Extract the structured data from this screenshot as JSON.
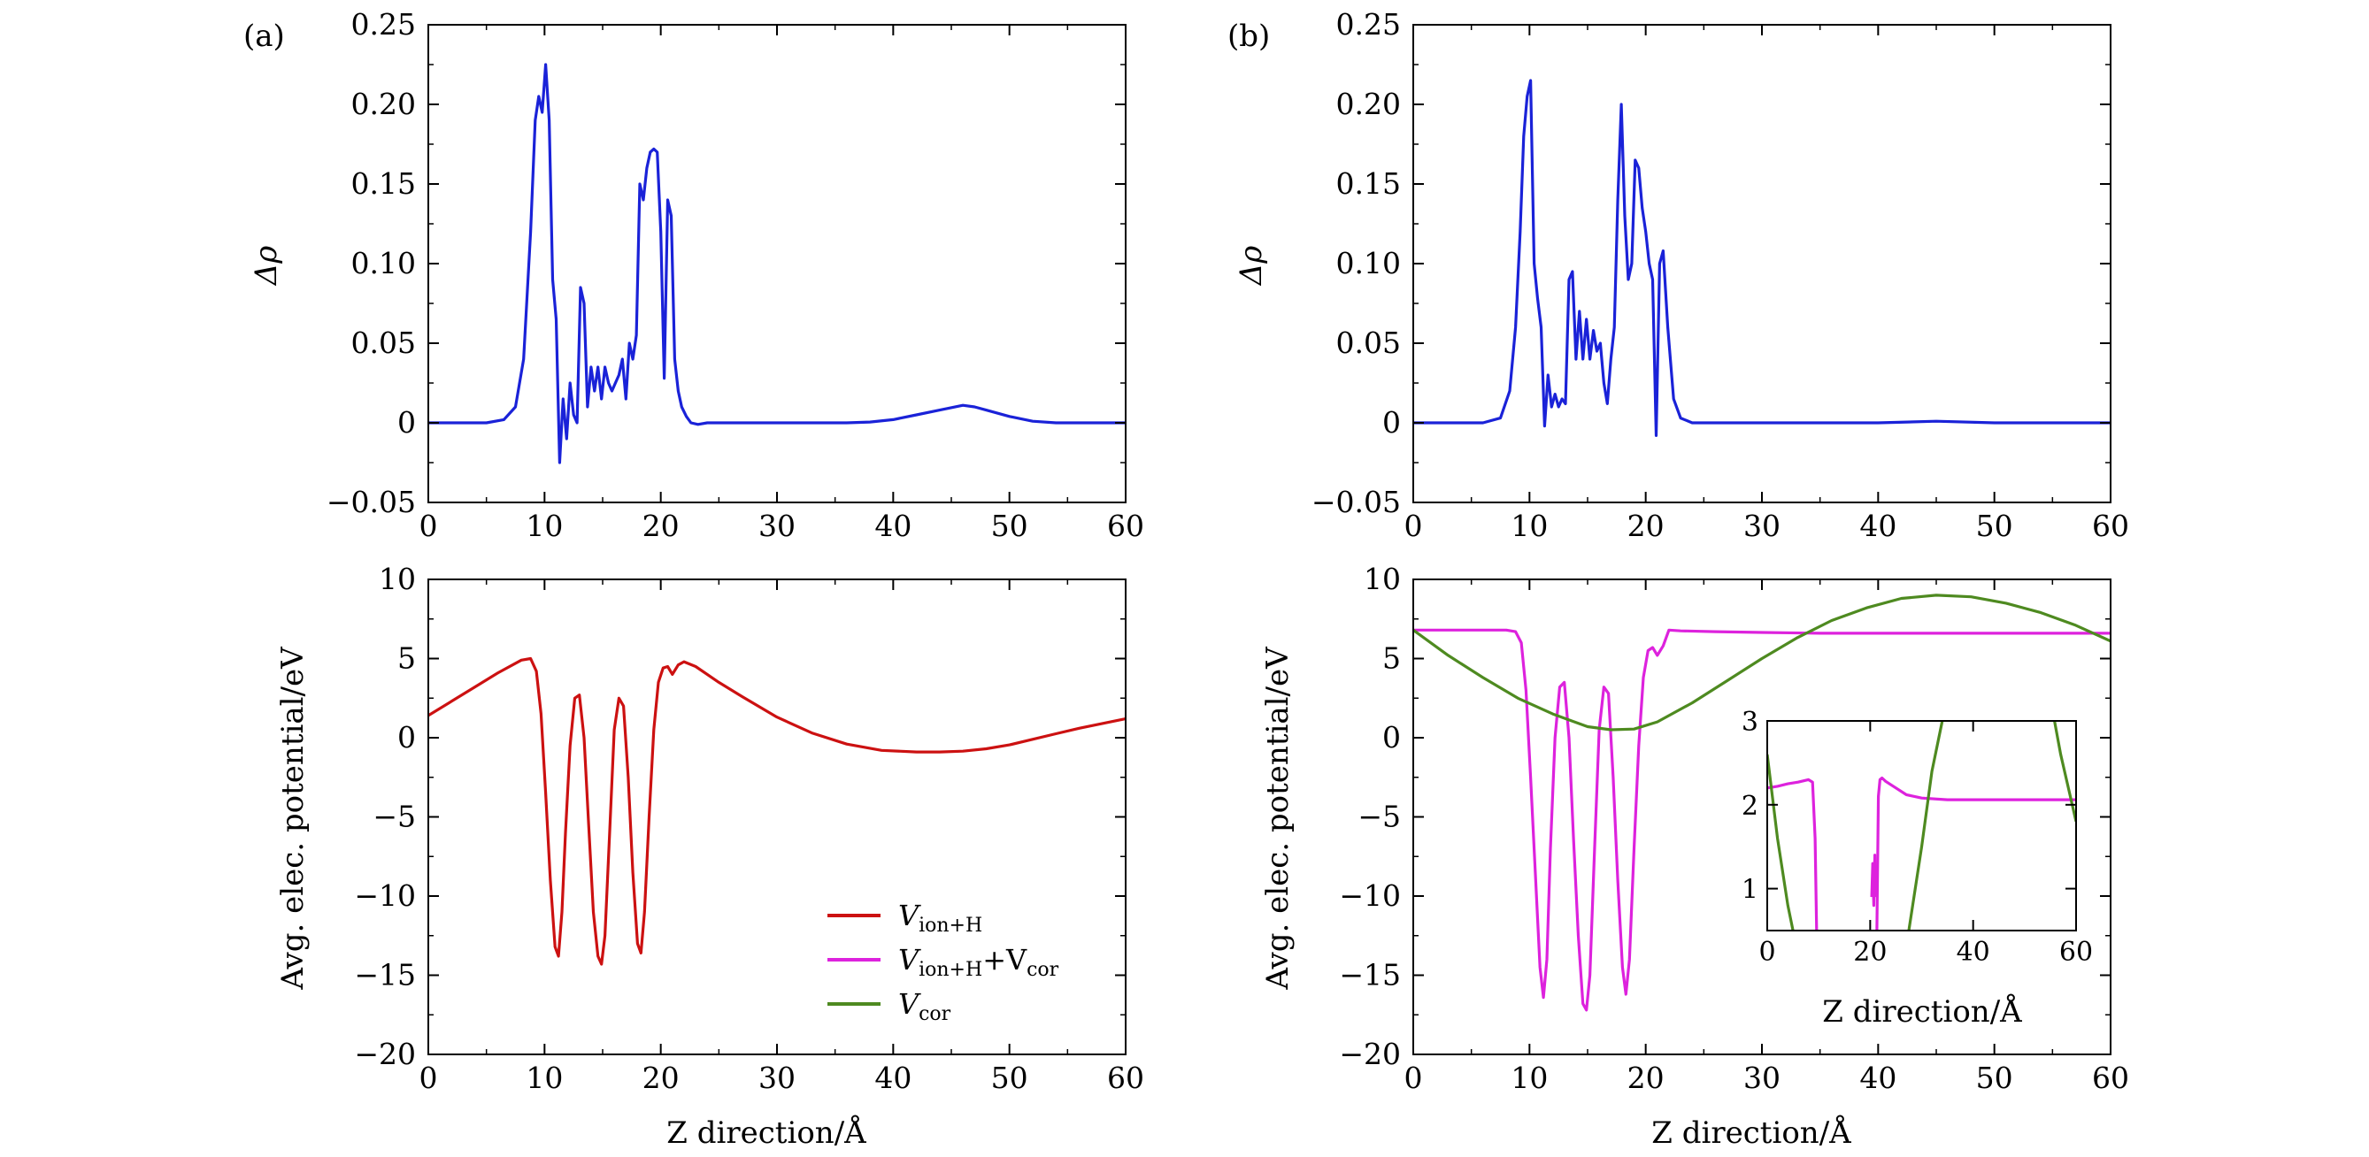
{
  "panels": {
    "a": {
      "label": "(a)"
    },
    "b": {
      "label": "(b)"
    }
  },
  "top_ylabel": "Δρ",
  "bottom_ylabel": "Avg. elec. potential/eV",
  "xlabel": "Z direction/Å",
  "legend": {
    "v_ion_h": "V",
    "v_ion_h_sub": "ion+H",
    "v_ion_h_cor": "V",
    "v_ion_h_cor_sub1": "ion+H",
    "v_ion_h_cor_plus": "+V",
    "v_ion_h_cor_sub2": "cor",
    "v_cor": "V",
    "v_cor_sub": "cor"
  },
  "colors": {
    "charge": "#1a22d8",
    "v_ion_h": "#cc1111",
    "v_total": "#dd22dd",
    "v_cor": "#4e8a20"
  },
  "chart_data": [
    {
      "id": "a-top",
      "type": "line",
      "xlim": [
        0,
        60
      ],
      "ylim": [
        -0.05,
        0.25
      ],
      "xticks": [
        0,
        10,
        20,
        30,
        40,
        50,
        60
      ],
      "yticks": [
        -0.05,
        0,
        0.05,
        0.1,
        0.15,
        0.2,
        0.25
      ],
      "ytick_labels": [
        "−0.05",
        "0",
        "0.05",
        "0.10",
        "0.15",
        "0.20",
        "0.25"
      ],
      "ylabel": "Δρ",
      "xlabel": "",
      "series": [
        {
          "color_key": "charge",
          "x": [
            0,
            5,
            6.5,
            7.5,
            8.2,
            8.8,
            9.2,
            9.5,
            9.8,
            10.1,
            10.4,
            10.7,
            11.0,
            11.3,
            11.6,
            11.9,
            12.2,
            12.5,
            12.8,
            13.1,
            13.4,
            13.7,
            14.0,
            14.3,
            14.6,
            14.9,
            15.2,
            15.5,
            15.8,
            16.1,
            16.4,
            16.7,
            17.0,
            17.3,
            17.6,
            17.9,
            18.2,
            18.5,
            18.8,
            19.1,
            19.4,
            19.7,
            20.0,
            20.3,
            20.6,
            20.9,
            21.2,
            21.5,
            21.8,
            22.2,
            22.6,
            23.2,
            24.0,
            25,
            26,
            27,
            28,
            30,
            33,
            36,
            38,
            40,
            42,
            44,
            46,
            47,
            48,
            50,
            52,
            54,
            56,
            58,
            60
          ],
          "y": [
            0,
            0,
            0.002,
            0.01,
            0.04,
            0.12,
            0.19,
            0.205,
            0.195,
            0.225,
            0.19,
            0.09,
            0.065,
            -0.025,
            0.015,
            -0.01,
            0.025,
            0.005,
            0.0,
            0.085,
            0.075,
            0.01,
            0.035,
            0.02,
            0.035,
            0.015,
            0.035,
            0.025,
            0.02,
            0.025,
            0.03,
            0.04,
            0.015,
            0.05,
            0.04,
            0.055,
            0.15,
            0.14,
            0.16,
            0.17,
            0.172,
            0.17,
            0.12,
            0.028,
            0.14,
            0.13,
            0.04,
            0.02,
            0.01,
            0.004,
            0.0,
            -0.001,
            0.0,
            0.0,
            0.0,
            0.0,
            0.0,
            0.0,
            0.0,
            0.0,
            0.0005,
            0.002,
            0.005,
            0.008,
            0.011,
            0.01,
            0.008,
            0.004,
            0.001,
            0.0,
            0.0,
            0.0,
            0.0
          ]
        }
      ]
    },
    {
      "id": "a-bottom",
      "type": "line",
      "xlim": [
        0,
        60
      ],
      "ylim": [
        -20,
        10
      ],
      "xticks": [
        0,
        10,
        20,
        30,
        40,
        50,
        60
      ],
      "yticks": [
        -20,
        -15,
        -10,
        -5,
        0,
        5,
        10
      ],
      "ytick_labels": [
        "−20",
        "−15",
        "−10",
        "−5",
        "0",
        "5",
        "10"
      ],
      "ylabel": "Avg. elec. potential/eV",
      "xlabel": "Z direction/Å",
      "series": [
        {
          "name": "V_ion+H",
          "color_key": "v_ion_h",
          "x": [
            0,
            2,
            4,
            6,
            8,
            8.8,
            9.3,
            9.7,
            10.1,
            10.5,
            10.9,
            11.2,
            11.5,
            11.8,
            12.2,
            12.6,
            13.0,
            13.4,
            13.8,
            14.2,
            14.6,
            14.9,
            15.2,
            15.6,
            16.0,
            16.4,
            16.8,
            17.2,
            17.6,
            18.0,
            18.3,
            18.6,
            19.0,
            19.4,
            19.8,
            20.2,
            20.6,
            21.0,
            21.5,
            22.0,
            23,
            25,
            27,
            30,
            33,
            36,
            39,
            42,
            44,
            46,
            48,
            50,
            52,
            54,
            56,
            58,
            60
          ],
          "y": [
            1.4,
            2.3,
            3.2,
            4.1,
            4.9,
            5.0,
            4.2,
            1.5,
            -3.5,
            -9.0,
            -13.2,
            -13.8,
            -11.0,
            -6.0,
            -0.5,
            2.5,
            2.7,
            0.0,
            -5.5,
            -11.0,
            -13.8,
            -14.3,
            -12.5,
            -6.0,
            0.5,
            2.5,
            2.0,
            -2.5,
            -8.5,
            -13.0,
            -13.6,
            -11.0,
            -5.0,
            0.5,
            3.5,
            4.4,
            4.5,
            4.0,
            4.6,
            4.8,
            4.5,
            3.5,
            2.6,
            1.3,
            0.3,
            -0.4,
            -0.8,
            -0.9,
            -0.9,
            -0.85,
            -0.7,
            -0.45,
            -0.1,
            0.25,
            0.6,
            0.9,
            1.2
          ]
        }
      ]
    },
    {
      "id": "b-top",
      "type": "line",
      "xlim": [
        0,
        60
      ],
      "ylim": [
        -0.05,
        0.25
      ],
      "xticks": [
        0,
        10,
        20,
        30,
        40,
        50,
        60
      ],
      "yticks": [
        -0.05,
        0,
        0.05,
        0.1,
        0.15,
        0.2,
        0.25
      ],
      "ytick_labels": [
        "−0.05",
        "0",
        "0.05",
        "0.10",
        "0.15",
        "0.20",
        "0.25"
      ],
      "ylabel": "Δρ",
      "xlabel": "",
      "series": [
        {
          "color_key": "charge",
          "x": [
            0,
            6,
            7.5,
            8.3,
            8.8,
            9.2,
            9.5,
            9.8,
            10.1,
            10.4,
            10.7,
            11.0,
            11.3,
            11.6,
            11.9,
            12.2,
            12.5,
            12.8,
            13.1,
            13.4,
            13.7,
            14.0,
            14.3,
            14.6,
            14.9,
            15.2,
            15.5,
            15.8,
            16.1,
            16.4,
            16.7,
            17.0,
            17.3,
            17.6,
            17.9,
            18.2,
            18.5,
            18.8,
            19.1,
            19.4,
            19.7,
            20.0,
            20.3,
            20.6,
            20.9,
            21.2,
            21.5,
            21.9,
            22.4,
            23,
            24,
            26,
            30,
            35,
            40,
            45,
            50,
            55,
            60
          ],
          "y": [
            0,
            0,
            0.003,
            0.02,
            0.06,
            0.12,
            0.18,
            0.205,
            0.215,
            0.1,
            0.078,
            0.06,
            -0.002,
            0.03,
            0.01,
            0.018,
            0.01,
            0.015,
            0.012,
            0.09,
            0.095,
            0.04,
            0.07,
            0.04,
            0.065,
            0.04,
            0.058,
            0.045,
            0.05,
            0.025,
            0.012,
            0.04,
            0.06,
            0.14,
            0.2,
            0.13,
            0.09,
            0.1,
            0.165,
            0.16,
            0.135,
            0.12,
            0.1,
            0.09,
            -0.008,
            0.1,
            0.108,
            0.06,
            0.015,
            0.003,
            0.0,
            0.0,
            0.0,
            0.0,
            0.0,
            0.001,
            0.0,
            0.0,
            0.0
          ]
        }
      ]
    },
    {
      "id": "b-bottom",
      "type": "line",
      "xlim": [
        0,
        60
      ],
      "ylim": [
        -20,
        10
      ],
      "xticks": [
        0,
        10,
        20,
        30,
        40,
        50,
        60
      ],
      "yticks": [
        -20,
        -15,
        -10,
        -5,
        0,
        5,
        10
      ],
      "ytick_labels": [
        "−20",
        "−15",
        "−10",
        "−5",
        "0",
        "5",
        "10"
      ],
      "ylabel": "Avg. elec. potential/eV",
      "xlabel": "Z direction/Å",
      "series": [
        {
          "name": "V_ion+H+V_cor",
          "color_key": "v_total",
          "x": [
            0,
            4,
            8,
            8.8,
            9.3,
            9.7,
            10.1,
            10.5,
            10.9,
            11.2,
            11.5,
            11.8,
            12.2,
            12.6,
            13.0,
            13.4,
            13.8,
            14.2,
            14.6,
            14.9,
            15.2,
            15.6,
            16.0,
            16.4,
            16.8,
            17.2,
            17.6,
            18.0,
            18.3,
            18.6,
            19.0,
            19.4,
            19.8,
            20.2,
            20.6,
            21.0,
            21.5,
            22.0,
            23,
            26,
            30,
            35,
            40,
            45,
            50,
            55,
            60
          ],
          "y": [
            6.8,
            6.8,
            6.8,
            6.7,
            6.0,
            3.0,
            -2.5,
            -8.5,
            -14.5,
            -16.4,
            -14.0,
            -7.0,
            0.0,
            3.2,
            3.5,
            0.0,
            -6.5,
            -12.5,
            -16.8,
            -17.2,
            -15.0,
            -7.0,
            0.5,
            3.2,
            2.8,
            -2.5,
            -9.0,
            -14.5,
            -16.2,
            -14.0,
            -7.0,
            -0.5,
            3.8,
            5.5,
            5.7,
            5.2,
            5.8,
            6.8,
            6.75,
            6.7,
            6.65,
            6.6,
            6.6,
            6.6,
            6.6,
            6.6,
            6.6
          ]
        },
        {
          "name": "V_cor",
          "color_key": "v_cor",
          "x": [
            0,
            3,
            6,
            9,
            12,
            15,
            17,
            19,
            21,
            24,
            27,
            30,
            33,
            36,
            39,
            42,
            45,
            48,
            51,
            54,
            57,
            60
          ],
          "y": [
            6.8,
            5.2,
            3.8,
            2.5,
            1.5,
            0.7,
            0.5,
            0.55,
            1.0,
            2.2,
            3.6,
            5.0,
            6.3,
            7.4,
            8.2,
            8.8,
            9.0,
            8.9,
            8.5,
            7.9,
            7.1,
            6.1
          ]
        }
      ]
    },
    {
      "id": "b-inset",
      "type": "line",
      "xlim": [
        0,
        60
      ],
      "ylim": [
        0.5,
        3
      ],
      "xticks": [
        0,
        20,
        40,
        60
      ],
      "yticks": [
        1,
        2,
        3
      ],
      "ytick_labels": [
        "1",
        "2",
        "3"
      ],
      "xlabel": "Z direction/Å",
      "ylabel": "",
      "series": [
        {
          "name": "V_ion+H+V_cor",
          "color_key": "v_total",
          "segments": [
            {
              "x": [
                0,
                2,
                4,
                6,
                8,
                8.8,
                9.3,
                9.6
              ],
              "y": [
                2.2,
                2.22,
                2.25,
                2.27,
                2.3,
                2.27,
                1.6,
                0.5
              ]
            },
            {
              "x": [
                20.3,
                20.5,
                20.7,
                20.9,
                21.1
              ],
              "y": [
                0.9,
                1.3,
                0.8,
                1.4,
                0.9
              ]
            },
            {
              "x": [
                21.3,
                21.6,
                21.9,
                22.3,
                23,
                25,
                27,
                30,
                35,
                40,
                45,
                50,
                55,
                60
              ],
              "y": [
                0.5,
                2.1,
                2.3,
                2.32,
                2.28,
                2.2,
                2.12,
                2.08,
                2.06,
                2.06,
                2.06,
                2.06,
                2.06,
                2.06
              ]
            }
          ]
        },
        {
          "name": "V_cor",
          "color_key": "v_cor",
          "segments": [
            {
              "x": [
                0,
                2,
                4,
                5
              ],
              "y": [
                2.6,
                1.6,
                0.8,
                0.5
              ]
            },
            {
              "x": [
                27.5,
                30,
                32,
                34
              ],
              "y": [
                0.5,
                1.5,
                2.4,
                3.0
              ]
            },
            {
              "x": [
                55.8,
                57,
                58.5,
                60
              ],
              "y": [
                3.0,
                2.6,
                2.2,
                1.8
              ]
            }
          ]
        }
      ]
    }
  ]
}
